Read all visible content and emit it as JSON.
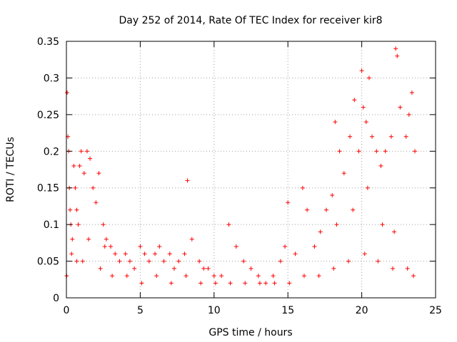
{
  "chart_data": {
    "type": "scatter",
    "title": "Day 252 of 2014, Rate Of TEC Index for receiver kir8",
    "xlabel": "GPS time / hours",
    "ylabel": "ROTI / TECUs",
    "xlim": [
      0,
      25
    ],
    "ylim": [
      0,
      0.35
    ],
    "x_ticks": [
      0,
      5,
      10,
      15,
      20,
      25
    ],
    "x_tick_labels": [
      "0",
      "5",
      "10",
      "15",
      "20",
      "25"
    ],
    "y_ticks": [
      0,
      0.05,
      0.1,
      0.15,
      0.2,
      0.25,
      0.3,
      0.35
    ],
    "y_tick_labels": [
      "0",
      "0.05",
      "0.1",
      "0.15",
      "0.2",
      "0.25",
      "0.3",
      "0.35"
    ],
    "grid": true,
    "marker": "+",
    "color": "#ff0000",
    "series": [
      {
        "name": "ROTI",
        "x": [
          0.05,
          0.1,
          0.15,
          0.2,
          0.25,
          0.3,
          0.4,
          0.5,
          0.6,
          0.7,
          0.8,
          0.9,
          1.0,
          1.2,
          1.4,
          1.6,
          1.8,
          2.0,
          2.2,
          2.5,
          2.7,
          3.0,
          3.3,
          3.6,
          4.0,
          4.3,
          4.6,
          5.0,
          5.3,
          5.6,
          6.0,
          6.3,
          6.6,
          7.0,
          7.3,
          7.6,
          8.0,
          8.2,
          8.5,
          9.0,
          9.3,
          9.6,
          10.0,
          10.5,
          11.0,
          11.5,
          12.0,
          12.5,
          13.0,
          13.5,
          14.0,
          14.5,
          14.8,
          15.0,
          15.5,
          16.0,
          16.3,
          16.8,
          17.2,
          17.6,
          18.0,
          18.2,
          18.5,
          18.8,
          19.2,
          19.5,
          19.8,
          20.0,
          20.1,
          20.3,
          20.5,
          20.7,
          21.0,
          21.3,
          21.6,
          22.0,
          22.3,
          22.4,
          22.6,
          23.0,
          23.2,
          23.4,
          23.6,
          0.02,
          1.1,
          2.3,
          3.1,
          4.1,
          5.1,
          6.1,
          7.1,
          8.1,
          9.1,
          10.1,
          11.1,
          12.1,
          13.1,
          14.1,
          15.1,
          16.1,
          17.1,
          18.1,
          19.1,
          20.2,
          21.1,
          22.1,
          23.1,
          23.5,
          0.35,
          0.7,
          1.5,
          2.6,
          18.3,
          19.4,
          20.4,
          21.4,
          22.2
        ],
        "y": [
          0.28,
          0.22,
          0.2,
          0.15,
          0.12,
          0.1,
          0.08,
          0.18,
          0.15,
          0.12,
          0.1,
          0.18,
          0.2,
          0.17,
          0.2,
          0.19,
          0.15,
          0.13,
          0.17,
          0.1,
          0.08,
          0.07,
          0.06,
          0.05,
          0.06,
          0.05,
          0.04,
          0.07,
          0.06,
          0.05,
          0.06,
          0.07,
          0.05,
          0.06,
          0.04,
          0.05,
          0.06,
          0.16,
          0.08,
          0.05,
          0.04,
          0.04,
          0.03,
          0.03,
          0.1,
          0.07,
          0.05,
          0.04,
          0.03,
          0.02,
          0.03,
          0.05,
          0.07,
          0.13,
          0.06,
          0.15,
          0.12,
          0.07,
          0.09,
          0.12,
          0.14,
          0.24,
          0.2,
          0.17,
          0.22,
          0.27,
          0.2,
          0.31,
          0.26,
          0.24,
          0.3,
          0.22,
          0.2,
          0.18,
          0.2,
          0.22,
          0.34,
          0.33,
          0.26,
          0.22,
          0.25,
          0.28,
          0.2,
          0.03,
          0.05,
          0.04,
          0.03,
          0.03,
          0.02,
          0.03,
          0.02,
          0.03,
          0.02,
          0.02,
          0.02,
          0.02,
          0.02,
          0.02,
          0.02,
          0.03,
          0.03,
          0.04,
          0.05,
          0.06,
          0.05,
          0.04,
          0.04,
          0.03,
          0.06,
          0.05,
          0.08,
          0.07,
          0.1,
          0.12,
          0.15,
          0.1,
          0.09
        ]
      }
    ]
  }
}
